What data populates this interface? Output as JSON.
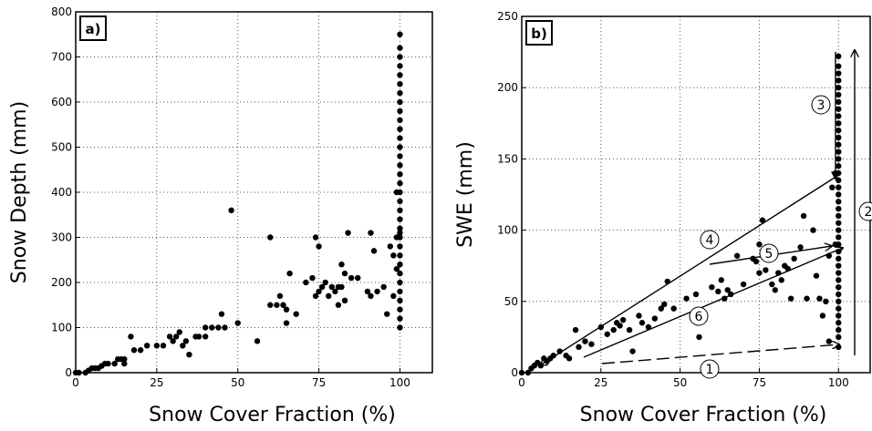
{
  "chart_data": [
    {
      "type": "scatter",
      "panel_label": "a)",
      "x_label": "Snow Cover Fraction (%)",
      "y_label": "Snow Depth (mm)",
      "xlim": [
        0,
        110
      ],
      "ylim": [
        0,
        800
      ],
      "xticks": [
        0,
        25,
        50,
        75,
        100
      ],
      "yticks": [
        0,
        100,
        200,
        300,
        400,
        500,
        600,
        700,
        800
      ],
      "grid": true,
      "color": "#000000",
      "x": [
        0,
        1,
        3,
        4,
        5,
        6,
        7,
        8,
        9,
        10,
        12,
        13,
        14,
        15,
        15,
        17,
        18,
        20,
        22,
        25,
        27,
        29,
        30,
        31,
        32,
        33,
        34,
        35,
        37,
        38,
        40,
        40,
        42,
        44,
        45,
        46,
        48,
        50,
        56,
        60,
        60,
        62,
        63,
        64,
        65,
        65,
        66,
        68,
        71,
        73,
        74,
        74,
        75,
        75,
        76,
        77,
        78,
        79,
        80,
        81,
        81,
        82,
        82,
        83,
        83,
        84,
        85,
        87,
        90,
        91,
        91,
        92,
        93,
        95,
        96,
        97,
        98,
        99,
        99,
        99,
        98,
        100,
        100,
        100,
        100,
        100,
        100,
        100,
        100,
        100,
        100,
        100,
        100,
        100,
        100,
        100,
        100,
        100,
        100,
        100,
        100,
        100,
        100,
        100,
        100,
        100,
        100,
        100,
        100,
        100,
        100,
        100,
        100,
        100,
        100
      ],
      "y": [
        0,
        0,
        0,
        5,
        10,
        10,
        10,
        15,
        20,
        20,
        20,
        30,
        30,
        20,
        30,
        80,
        50,
        50,
        60,
        60,
        60,
        80,
        70,
        80,
        90,
        60,
        70,
        40,
        80,
        80,
        80,
        100,
        100,
        100,
        130,
        100,
        360,
        110,
        70,
        300,
        150,
        150,
        170,
        150,
        110,
        140,
        220,
        130,
        200,
        210,
        170,
        300,
        180,
        280,
        190,
        200,
        170,
        190,
        180,
        190,
        150,
        240,
        190,
        160,
        220,
        310,
        210,
        210,
        180,
        310,
        170,
        270,
        180,
        190,
        130,
        280,
        170,
        400,
        300,
        230,
        260,
        100,
        120,
        140,
        160,
        180,
        200,
        220,
        240,
        260,
        280,
        300,
        310,
        320,
        340,
        360,
        380,
        400,
        420,
        440,
        460,
        480,
        500,
        520,
        540,
        560,
        580,
        600,
        620,
        640,
        660,
        680,
        700,
        720,
        750
      ]
    },
    {
      "type": "scatter",
      "panel_label": "b)",
      "x_label": "Snow Cover Fraction (%)",
      "y_label": "SWE (mm)",
      "xlim": [
        0,
        110
      ],
      "ylim": [
        0,
        250
      ],
      "xticks": [
        0,
        25,
        50,
        75,
        100
      ],
      "yticks": [
        0,
        50,
        100,
        150,
        200,
        250
      ],
      "grid": true,
      "color": "#000000",
      "x": [
        0,
        2,
        3,
        4,
        5,
        6,
        7,
        8,
        9,
        10,
        12,
        14,
        15,
        17,
        18,
        20,
        22,
        25,
        27,
        29,
        30,
        31,
        32,
        34,
        35,
        37,
        38,
        40,
        42,
        44,
        45,
        46,
        48,
        52,
        55,
        56,
        60,
        62,
        63,
        64,
        65,
        66,
        68,
        70,
        73,
        74,
        75,
        75,
        76,
        77,
        78,
        79,
        80,
        81,
        82,
        83,
        84,
        85,
        86,
        88,
        89,
        90,
        92,
        93,
        94,
        95,
        96,
        97,
        97,
        98,
        99,
        99,
        100,
        100,
        100,
        100,
        100,
        100,
        100,
        100,
        100,
        100,
        100,
        100,
        100,
        100,
        100,
        100,
        100,
        100,
        100,
        100,
        100,
        100,
        100,
        100,
        100,
        100,
        100,
        100,
        100,
        100,
        100,
        100,
        100,
        100,
        100,
        100,
        100,
        100,
        100,
        100,
        100
      ],
      "y": [
        0,
        0,
        3,
        5,
        7,
        5,
        10,
        8,
        10,
        12,
        15,
        12,
        10,
        30,
        18,
        22,
        20,
        32,
        27,
        30,
        35,
        33,
        37,
        30,
        15,
        40,
        35,
        32,
        38,
        45,
        48,
        64,
        45,
        52,
        55,
        25,
        60,
        57,
        65,
        52,
        58,
        55,
        82,
        62,
        80,
        78,
        70,
        90,
        107,
        72,
        80,
        62,
        58,
        70,
        65,
        75,
        73,
        52,
        80,
        88,
        110,
        52,
        100,
        68,
        52,
        40,
        50,
        82,
        22,
        130,
        90,
        140,
        18,
        25,
        30,
        35,
        40,
        45,
        50,
        55,
        60,
        65,
        70,
        75,
        80,
        85,
        90,
        95,
        100,
        105,
        110,
        115,
        120,
        125,
        130,
        135,
        140,
        145,
        150,
        155,
        160,
        165,
        170,
        175,
        180,
        185,
        190,
        195,
        200,
        205,
        210,
        215,
        222
      ],
      "annotations": [
        "1",
        "2",
        "3",
        "4",
        "5",
        "6"
      ]
    }
  ]
}
